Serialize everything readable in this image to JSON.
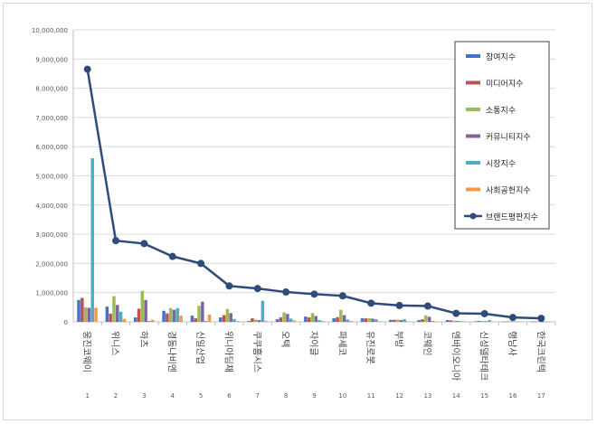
{
  "chart_data": {
    "type": "bar",
    "title": "",
    "xlabel": "",
    "ylabel": "",
    "ylim": [
      0,
      10000000
    ],
    "yticks": [
      "0",
      "1,000,000",
      "2,000,000",
      "3,000,000",
      "4,000,000",
      "5,000,000",
      "6,000,000",
      "7,000,000",
      "8,000,000",
      "9,000,000",
      "10,000,000"
    ],
    "grid": true,
    "legend_position": "top-right",
    "ranks": [
      "1",
      "2",
      "3",
      "4",
      "5",
      "6",
      "7",
      "8",
      "9",
      "10",
      "11",
      "12",
      "13",
      "14",
      "15",
      "16",
      "17"
    ],
    "categories": [
      "웅진코웨이",
      "위니스",
      "하츠",
      "경동나비엔",
      "신일산업",
      "위니아딤채",
      "쿠쿠홈시스",
      "오텍",
      "자이글",
      "파세코",
      "유진로봇",
      "부방",
      "코웨인",
      "엔바이오니아",
      "신성델타테크",
      "행남사",
      "한국크린텍"
    ],
    "series": [
      {
        "name": "참여지수",
        "color": "#4472c4",
        "kind": "bar",
        "values": [
          750000,
          520000,
          150000,
          380000,
          210000,
          150000,
          30000,
          90000,
          180000,
          120000,
          120000,
          70000,
          60000,
          60000,
          20000,
          10000,
          10000
        ]
      },
      {
        "name": "미디어지수",
        "color": "#c0504d",
        "kind": "bar",
        "values": [
          820000,
          280000,
          450000,
          290000,
          120000,
          230000,
          120000,
          150000,
          150000,
          160000,
          120000,
          70000,
          90000,
          50000,
          30000,
          10000,
          10000
        ]
      },
      {
        "name": "소통지수",
        "color": "#9bbb59",
        "kind": "bar",
        "values": [
          500000,
          880000,
          1060000,
          470000,
          550000,
          440000,
          80000,
          320000,
          300000,
          410000,
          130000,
          80000,
          220000,
          40000,
          30000,
          20000,
          10000
        ]
      },
      {
        "name": "커뮤니티지수",
        "color": "#8064a2",
        "kind": "bar",
        "values": [
          480000,
          580000,
          750000,
          410000,
          690000,
          300000,
          60000,
          270000,
          200000,
          230000,
          110000,
          60000,
          170000,
          30000,
          20000,
          10000,
          10000
        ]
      },
      {
        "name": "시장지수",
        "color": "#4bacc6",
        "kind": "bar",
        "values": [
          5600000,
          350000,
          30000,
          470000,
          30000,
          100000,
          720000,
          110000,
          60000,
          80000,
          90000,
          90000,
          30000,
          20000,
          60000,
          10000,
          10000
        ]
      },
      {
        "name": "사회공헌지수",
        "color": "#f79646",
        "kind": "bar",
        "values": [
          480000,
          100000,
          70000,
          210000,
          250000,
          30000,
          30000,
          50000,
          30000,
          30000,
          20000,
          20000,
          20000,
          20000,
          10000,
          10000,
          10000
        ]
      },
      {
        "name": "브랜드평판지수",
        "color": "#2f4b7c",
        "kind": "line",
        "values": [
          8650000,
          2780000,
          2680000,
          2240000,
          2000000,
          1230000,
          1140000,
          1020000,
          950000,
          890000,
          640000,
          560000,
          540000,
          290000,
          280000,
          150000,
          120000
        ]
      }
    ]
  }
}
